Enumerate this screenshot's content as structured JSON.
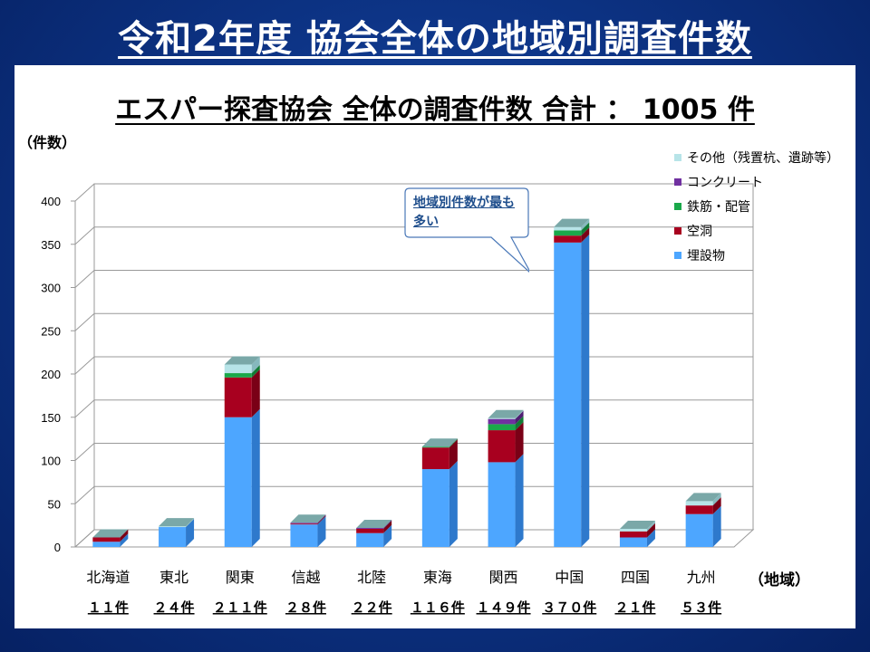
{
  "slide_title": "令和2年度 協会全体の地域別調査件数",
  "chart_title": "エスパー探査協会 全体の調査件数 合計 ： 1005 件",
  "unit_label": "（件数）",
  "x_axis_title": "（地域）",
  "callout_text": "地域別件数が最も多い",
  "colors": {
    "background": "#0d3486",
    "panel": "#ffffff",
    "callout_border": "#4a78b8"
  },
  "chart_data": {
    "type": "bar",
    "stacked": true,
    "three_d": true,
    "grid": true,
    "legend_position": "top-right",
    "ylim": [
      0,
      400
    ],
    "yticks": [
      "0",
      "50",
      "100",
      "150",
      "200",
      "250",
      "300",
      "350",
      "400"
    ],
    "categories": [
      "北海道",
      "東北",
      "関東",
      "信越",
      "北陸",
      "東海",
      "関西",
      "中国",
      "四国",
      "九州"
    ],
    "totals": [
      "１１件",
      "２４件",
      "２１１件",
      "２８件",
      "２２件",
      "１１６件",
      "１４９件",
      "３７０件",
      "２１件",
      "５３件"
    ],
    "series": [
      {
        "name": "埋設物",
        "color": "#4da6ff",
        "side": "#2e79cc",
        "top": "#8cc6ff",
        "values": [
          6,
          23,
          150,
          26,
          16,
          90,
          98,
          352,
          11,
          38
        ]
      },
      {
        "name": "空洞",
        "color": "#a8001f",
        "side": "#7a0016",
        "top": "#d04058",
        "values": [
          5,
          0,
          46,
          1,
          5,
          25,
          37,
          8,
          7,
          10
        ]
      },
      {
        "name": "鉄筋・配管",
        "color": "#1aa84a",
        "side": "#117a34",
        "top": "#5cd080",
        "values": [
          0,
          0,
          5,
          0,
          0,
          1,
          7,
          6,
          0,
          0
        ]
      },
      {
        "name": "コンクリート",
        "color": "#7030a0",
        "side": "#4e1f72",
        "top": "#a070c8",
        "values": [
          0,
          0,
          0,
          1,
          1,
          0,
          6,
          0,
          0,
          0
        ]
      },
      {
        "name": "その他（残置杭、遺跡等）",
        "color": "#b7e4e8",
        "side": "#86b8bd",
        "top": "#dff4f6",
        "values": [
          0,
          1,
          10,
          0,
          0,
          0,
          1,
          4,
          3,
          5
        ]
      }
    ]
  }
}
